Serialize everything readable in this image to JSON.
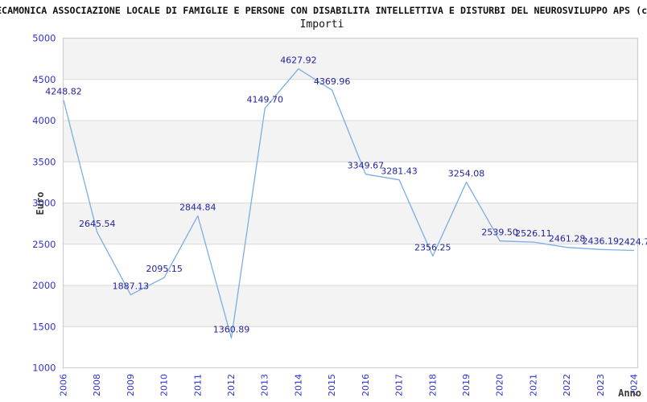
{
  "header": {
    "title": "ECAMONICA ASSOCIAZIONE LOCALE DI FAMIGLIE E PERSONE CON DISABILITA INTELLETTIVA E DISTURBI DEL NEUROSVILUPPO APS (c",
    "subtitle": "Importi"
  },
  "chart_data": {
    "type": "line",
    "title": "Importi",
    "xlabel": "Anno",
    "ylabel": "Euro",
    "categories": [
      "2006",
      "2008",
      "2009",
      "2010",
      "2011",
      "2012",
      "2013",
      "2014",
      "2015",
      "2016",
      "2017",
      "2018",
      "2019",
      "2020",
      "2021",
      "2022",
      "2023",
      "2024"
    ],
    "series": [
      {
        "name": "Importi",
        "values": [
          4248.82,
          2645.54,
          1887.13,
          2095.15,
          2844.84,
          1360.89,
          4149.7,
          4627.92,
          4369.96,
          3349.67,
          3281.43,
          2356.25,
          3254.08,
          2539.5,
          2526.11,
          2461.28,
          2436.19,
          2424.7
        ]
      }
    ],
    "point_labels": [
      "4248.82",
      "2645.54",
      "1887.13",
      "2095.15",
      "2844.84",
      "1360.89",
      "4149.70",
      "4627.92",
      "4369.96",
      "3349.67",
      "3281.43",
      "2356.25",
      "3254.08",
      "2539.50",
      "2526.11",
      "2461.28",
      "2436.19",
      "2424.7"
    ],
    "ylim": [
      1000,
      5000
    ],
    "yticks": [
      1000,
      1500,
      2000,
      2500,
      3000,
      3500,
      4000,
      4500,
      5000
    ],
    "grid": "horizontal",
    "background_bands": "alternating-gray-from-top",
    "legend": "none",
    "colors": {
      "line": "#7cade4",
      "point_label": "#23239b",
      "tick_label": "#3333cc",
      "axis_label": "#3a3a3a",
      "band_gray": "#f3f3f3",
      "band_white": "#ffffff",
      "gridline": "#d9d9d9",
      "frame": "#cfcfcf",
      "title": "#111111"
    }
  }
}
